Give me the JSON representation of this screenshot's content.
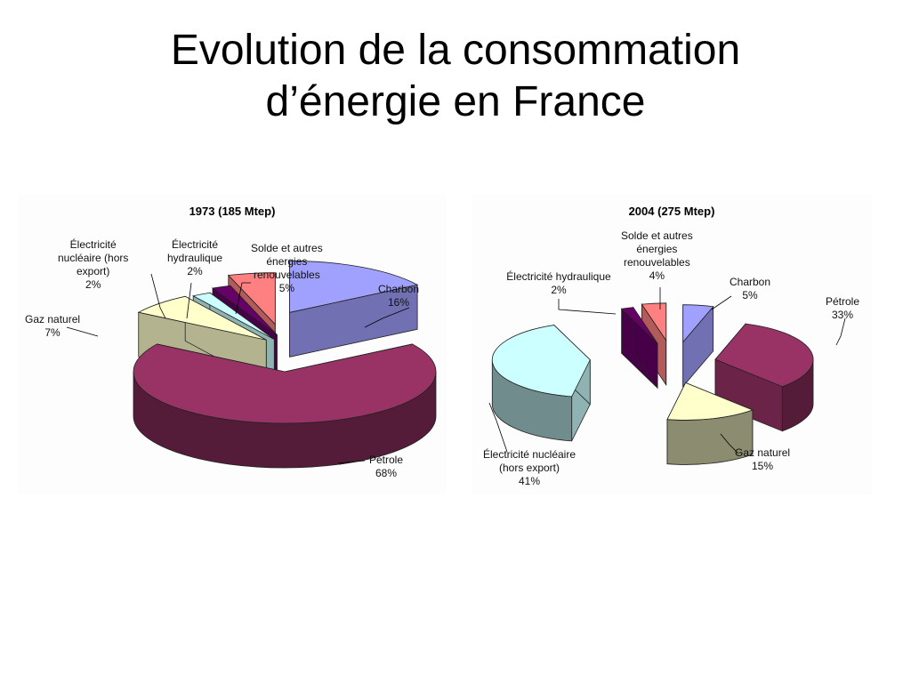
{
  "slide": {
    "title_line1": "Evolution de la consommation",
    "title_line2": "d’énergie en France"
  },
  "chart_data": [
    {
      "type": "pie",
      "title": "1973 (185 Mtep)",
      "slices": [
        {
          "lines": [
            "Charbon"
          ],
          "value": 16,
          "value_label": "16%",
          "color": "#a0a0ff"
        },
        {
          "lines": [
            "Pétrole"
          ],
          "value": 68,
          "value_label": "68%",
          "color": "#993366"
        },
        {
          "lines": [
            "Gaz naturel"
          ],
          "value": 7,
          "value_label": "7%",
          "color": "#ffffcc"
        },
        {
          "lines": [
            "Électricité",
            "nucléaire (hors",
            "export)"
          ],
          "value": 2,
          "value_label": "2%",
          "color": "#ccffff"
        },
        {
          "lines": [
            "Électricité",
            "hydraulique"
          ],
          "value": 2,
          "value_label": "2%",
          "color": "#660066"
        },
        {
          "lines": [
            "Solde et autres",
            "énergies",
            "renouvelables"
          ],
          "value": 5,
          "value_label": "5%",
          "color": "#ff8080"
        }
      ]
    },
    {
      "type": "pie",
      "title": "2004 (275 Mtep)",
      "slices": [
        {
          "lines": [
            "Charbon"
          ],
          "value": 5,
          "value_label": "5%",
          "color": "#a0a0ff"
        },
        {
          "lines": [
            "Pétrole"
          ],
          "value": 33,
          "value_label": "33%",
          "color": "#993366"
        },
        {
          "lines": [
            "Gaz naturel"
          ],
          "value": 15,
          "value_label": "15%",
          "color": "#ffffcc"
        },
        {
          "lines": [
            "Électricité nucléaire",
            "(hors export)"
          ],
          "value": 41,
          "value_label": "41%",
          "color": "#ccffff"
        },
        {
          "lines": [
            "Électricité hydraulique"
          ],
          "value": 2,
          "value_label": "2%",
          "color": "#660066"
        },
        {
          "lines": [
            "Solde et autres",
            "énergies",
            "renouvelables"
          ],
          "value": 4,
          "value_label": "4%",
          "color": "#ff8080"
        }
      ]
    }
  ]
}
